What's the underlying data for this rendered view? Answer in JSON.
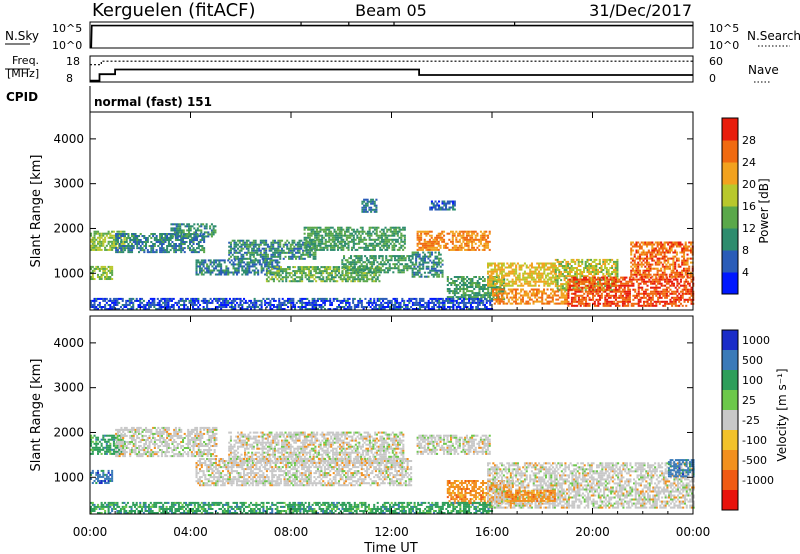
{
  "header": {
    "station": "Kerguelen (fitACF)",
    "beam": "Beam 05",
    "date": "31/Dec/2017"
  },
  "noise_panel": {
    "left_label": "N.Sky",
    "left_ticks": [
      "10^5",
      "10^0"
    ],
    "right_ticks": [
      "10^5",
      "10^0"
    ],
    "right_label": "N.Search",
    "left_series": [
      {
        "t": 0.0,
        "log10": 0.2
      },
      {
        "t": 0.05,
        "log10": 0.2
      },
      {
        "t": 0.07,
        "log10": 4.3
      },
      {
        "t": 24.0,
        "log10": 4.3
      }
    ],
    "spikes_t": [
      8.4,
      10.3,
      12.1,
      16.9
    ]
  },
  "freq_panel": {
    "left_label_line1": "Freq.",
    "left_label_line2": "[MHz]",
    "left_ticks": [
      18,
      8
    ],
    "right_ticks": [
      60,
      0
    ],
    "right_label": "Nave",
    "freq_series": [
      {
        "t": 0.0,
        "mhz": 8.5
      },
      {
        "t": 0.38,
        "mhz": 8.5
      },
      {
        "t": 0.38,
        "mhz": 11.0
      },
      {
        "t": 1.0,
        "mhz": 11.0
      },
      {
        "t": 1.0,
        "mhz": 12.8
      },
      {
        "t": 13.1,
        "mhz": 12.8
      },
      {
        "t": 13.1,
        "mhz": 10.7
      },
      {
        "t": 24.0,
        "mhz": 10.7
      }
    ],
    "nave_series": [
      {
        "t": 0.0,
        "nave": 40
      },
      {
        "t": 0.45,
        "nave": 40
      },
      {
        "t": 0.45,
        "nave": 48
      },
      {
        "t": 24.0,
        "nave": 48
      }
    ]
  },
  "cpid": {
    "label": "CPID",
    "mode": "normal (fast) 151"
  },
  "x_axis": {
    "label": "Time UT",
    "ticks": [
      "00:00",
      "04:00",
      "08:00",
      "12:00",
      "16:00",
      "20:00",
      "00:00"
    ],
    "range_hours": [
      0,
      24
    ]
  },
  "chart_data": [
    {
      "type": "heatmap",
      "quantity": "Power",
      "ylabel": "Slant Range [km]",
      "yticks": [
        1000,
        2000,
        3000,
        4000
      ],
      "ylim": [
        180,
        4600
      ],
      "xlim": [
        0,
        24
      ],
      "colorbar": {
        "label": "Power [dB]",
        "ticks": [
          4,
          8,
          12,
          16,
          20,
          24,
          28
        ],
        "range": [
          0,
          32
        ],
        "colors": [
          "#0018ff",
          "#2a5cb8",
          "#2e8c6e",
          "#5aa84a",
          "#b8c82c",
          "#f2a21e",
          "#f06a10",
          "#e81c0c"
        ]
      },
      "regions": [
        {
          "t0": 0.0,
          "t1": 1.4,
          "r0": 1500,
          "r1": 1950,
          "level": 16
        },
        {
          "t0": 0.0,
          "t1": 0.9,
          "r0": 850,
          "r1": 1150,
          "level": 16
        },
        {
          "t0": 1.0,
          "t1": 4.5,
          "r0": 1450,
          "r1": 1900,
          "level": 9
        },
        {
          "t0": 3.2,
          "t1": 5.0,
          "r0": 1800,
          "r1": 2100,
          "level": 10
        },
        {
          "t0": 5.5,
          "t1": 9.0,
          "r0": 1300,
          "r1": 1750,
          "level": 10
        },
        {
          "t0": 8.5,
          "t1": 12.5,
          "r0": 1500,
          "r1": 2000,
          "level": 12
        },
        {
          "t0": 4.2,
          "t1": 7.5,
          "r0": 950,
          "r1": 1300,
          "level": 9
        },
        {
          "t0": 7.0,
          "t1": 11.5,
          "r0": 800,
          "r1": 1150,
          "level": 14
        },
        {
          "t0": 10.0,
          "t1": 12.8,
          "r0": 1000,
          "r1": 1400,
          "level": 12
        },
        {
          "t0": 13.0,
          "t1": 15.9,
          "r0": 1500,
          "r1": 1950,
          "level": 24
        },
        {
          "t0": 12.8,
          "t1": 14.0,
          "r0": 900,
          "r1": 1450,
          "level": 10
        },
        {
          "t0": 14.2,
          "t1": 16.5,
          "r0": 400,
          "r1": 900,
          "level": 12
        },
        {
          "t0": 15.8,
          "t1": 18.5,
          "r0": 700,
          "r1": 1200,
          "level": 20
        },
        {
          "t0": 16.0,
          "t1": 19.0,
          "r0": 300,
          "r1": 650,
          "level": 24
        },
        {
          "t0": 18.5,
          "t1": 21.0,
          "r0": 600,
          "r1": 1300,
          "level": 18
        },
        {
          "t0": 19.0,
          "t1": 24.0,
          "r0": 250,
          "r1": 900,
          "level": 28
        },
        {
          "t0": 21.5,
          "t1": 24.0,
          "r0": 900,
          "r1": 1700,
          "level": 26
        },
        {
          "t0": 10.8,
          "t1": 11.4,
          "r0": 2350,
          "r1": 2650,
          "level": 8
        },
        {
          "t0": 13.5,
          "t1": 14.5,
          "r0": 2400,
          "r1": 2600,
          "level": 6
        },
        {
          "t0": 0.0,
          "t1": 16.0,
          "r0": 180,
          "r1": 450,
          "level": 5
        }
      ]
    },
    {
      "type": "heatmap",
      "quantity": "Velocity",
      "ylabel": "Slant Range [km]",
      "yticks": [
        1000,
        2000,
        3000,
        4000
      ],
      "ylim": [
        180,
        4600
      ],
      "xlim": [
        0,
        24
      ],
      "colorbar": {
        "label": "Velocity [m s⁻¹]",
        "ticks": [
          1000,
          500,
          100,
          25,
          -25,
          -100,
          -500,
          -1000
        ],
        "colors": [
          "#1a2cc8",
          "#3a7ab8",
          "#2e9e5a",
          "#6cc84a",
          "#c8c8c8",
          "#f2c22a",
          "#f2901e",
          "#f05a12",
          "#e8120c"
        ]
      },
      "regions": [
        {
          "t0": 0.0,
          "t1": 1.4,
          "r0": 1500,
          "r1": 1950,
          "v": 100
        },
        {
          "t0": 0.0,
          "t1": 0.9,
          "r0": 850,
          "r1": 1150,
          "v": 150
        },
        {
          "t0": 1.0,
          "t1": 5.0,
          "r0": 1450,
          "r1": 2100,
          "v": 0
        },
        {
          "t0": 5.5,
          "t1": 12.5,
          "r0": 1300,
          "r1": 2000,
          "v": 0
        },
        {
          "t0": 4.2,
          "t1": 12.8,
          "r0": 800,
          "r1": 1400,
          "v": 0
        },
        {
          "t0": 13.0,
          "t1": 15.9,
          "r0": 1500,
          "r1": 1950,
          "v": 0
        },
        {
          "t0": 14.2,
          "t1": 16.8,
          "r0": 400,
          "r1": 900,
          "v": -120
        },
        {
          "t0": 15.8,
          "t1": 24.0,
          "r0": 300,
          "r1": 1300,
          "v": 0
        },
        {
          "t0": 16.5,
          "t1": 18.5,
          "r0": 450,
          "r1": 700,
          "v": -120
        },
        {
          "t0": 0.0,
          "t1": 16.0,
          "r0": 180,
          "r1": 450,
          "v": 60
        },
        {
          "t0": 23.0,
          "t1": 24.0,
          "r0": 1000,
          "r1": 1400,
          "v": 300
        }
      ]
    }
  ]
}
